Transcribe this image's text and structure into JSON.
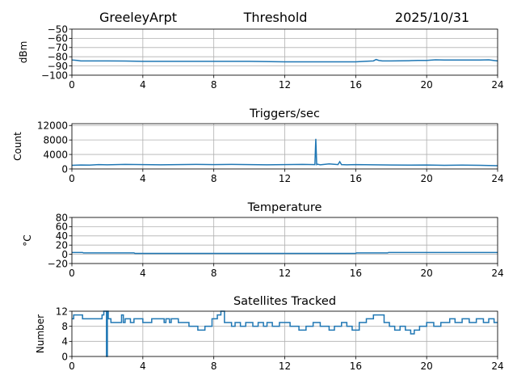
{
  "header": {
    "station": "GreeleyArpt",
    "title": "Threshold",
    "date": "2025/10/31"
  },
  "colors": {
    "line": "#1f77b4",
    "grid": "#b0b0b0",
    "axis": "#000000"
  },
  "chart_data": [
    {
      "type": "line",
      "title": "",
      "ylabel": "dBm",
      "xlim": [
        0,
        24
      ],
      "ylim": [
        -100,
        -50
      ],
      "xticks": [
        0,
        4,
        8,
        12,
        16,
        20,
        24
      ],
      "yticks": [
        -100,
        -90,
        -80,
        -70,
        -60,
        -50
      ],
      "grid": true,
      "series": [
        {
          "x": [
            0,
            0.3,
            0.5,
            1,
            2,
            3,
            4,
            6,
            8,
            10,
            12,
            14,
            16,
            16.5,
            17,
            17.15,
            17.3,
            17.5,
            18,
            19,
            19.5,
            20,
            20.5,
            21,
            22,
            23,
            23.5,
            24
          ],
          "values": [
            -83.5,
            -84,
            -84.5,
            -84.5,
            -84.5,
            -84.6,
            -85,
            -85,
            -85,
            -85,
            -85.5,
            -85.5,
            -85.5,
            -85,
            -84.5,
            -83,
            -84,
            -84.5,
            -84.5,
            -84.3,
            -84,
            -84,
            -83.3,
            -83.5,
            -83.5,
            -83.5,
            -83.3,
            -84.5
          ]
        }
      ]
    },
    {
      "type": "line",
      "title": "Triggers/sec",
      "ylabel": "Count",
      "xlim": [
        0,
        24
      ],
      "ylim": [
        0,
        12500
      ],
      "xticks": [
        0,
        4,
        8,
        12,
        16,
        20,
        24
      ],
      "yticks": [
        0,
        4000,
        8000,
        12000
      ],
      "grid": true,
      "series": [
        {
          "x": [
            0,
            0.5,
            1,
            1.5,
            2,
            3,
            4,
            5,
            6,
            7,
            8,
            9,
            10,
            11,
            12,
            13,
            13.7,
            13.75,
            13.8,
            13.85,
            14,
            14.5,
            15,
            15.1,
            15.2,
            15.5,
            16,
            17,
            18,
            19,
            20,
            21,
            22,
            23,
            24
          ],
          "values": [
            1000,
            1100,
            1050,
            1200,
            1150,
            1250,
            1200,
            1150,
            1200,
            1250,
            1200,
            1250,
            1200,
            1150,
            1200,
            1250,
            1200,
            8300,
            1200,
            1300,
            1150,
            1400,
            1200,
            2000,
            1200,
            1150,
            1200,
            1150,
            1100,
            1050,
            1100,
            1000,
            1050,
            1000,
            900
          ]
        }
      ]
    },
    {
      "type": "line",
      "title": "Temperature",
      "ylabel": "°C",
      "xlim": [
        0,
        24
      ],
      "ylim": [
        -20,
        80
      ],
      "xticks": [
        0,
        4,
        8,
        12,
        16,
        20,
        24
      ],
      "yticks": [
        -20,
        0,
        20,
        40,
        60,
        80
      ],
      "grid": true,
      "series": [
        {
          "x": [
            0,
            0.6,
            0.65,
            3.5,
            3.55,
            16,
            16.05,
            17.8,
            17.85,
            24
          ],
          "values": [
            4,
            4,
            3,
            3,
            2,
            2,
            3,
            3,
            4,
            4
          ]
        }
      ]
    },
    {
      "type": "line",
      "title": "Satellites Tracked",
      "ylabel": "Number",
      "xlim": [
        0,
        24
      ],
      "ylim": [
        0,
        12
      ],
      "xticks": [
        0,
        4,
        8,
        12,
        16,
        20,
        24
      ],
      "yticks": [
        0,
        4,
        8,
        12
      ],
      "grid": true,
      "series": [
        {
          "x": [
            0,
            0.1,
            0.1,
            0.6,
            0.6,
            1.7,
            1.7,
            1.8,
            1.8,
            1.95,
            1.95,
            2.0,
            2.0,
            2.05,
            2.05,
            2.2,
            2.2,
            2.8,
            2.8,
            2.9,
            2.9,
            3.0,
            3.0,
            3.3,
            3.3,
            3.5,
            3.5,
            4.0,
            4.0,
            4.5,
            4.5,
            5.2,
            5.2,
            5.3,
            5.3,
            5.5,
            5.5,
            5.6,
            5.6,
            6.0,
            6.0,
            6.6,
            6.6,
            7.1,
            7.1,
            7.5,
            7.5,
            7.9,
            7.9,
            8.2,
            8.2,
            8.4,
            8.4,
            8.6,
            8.6,
            9.0,
            9.0,
            9.2,
            9.2,
            9.5,
            9.5,
            9.8,
            9.8,
            10.2,
            10.2,
            10.5,
            10.5,
            10.8,
            10.8,
            11.0,
            11.0,
            11.3,
            11.3,
            11.7,
            11.7,
            12.3,
            12.3,
            12.8,
            12.8,
            13.2,
            13.2,
            13.6,
            13.6,
            14.0,
            14.0,
            14.5,
            14.5,
            14.8,
            14.8,
            15.2,
            15.2,
            15.5,
            15.5,
            15.8,
            15.8,
            16.2,
            16.2,
            16.6,
            16.6,
            17.0,
            17.0,
            17.6,
            17.6,
            17.9,
            17.9,
            18.2,
            18.2,
            18.5,
            18.5,
            18.8,
            18.8,
            19.1,
            19.1,
            19.3,
            19.3,
            19.6,
            19.6,
            20.0,
            20.0,
            20.4,
            20.4,
            20.8,
            20.8,
            21.3,
            21.3,
            21.6,
            21.6,
            22.0,
            22.0,
            22.4,
            22.4,
            22.8,
            22.8,
            23.2,
            23.2,
            23.5,
            23.5,
            23.8,
            23.8,
            24
          ],
          "values": [
            10,
            10,
            11,
            11,
            10,
            10,
            11,
            11,
            12,
            12,
            0,
            0,
            12,
            12,
            10,
            10,
            9,
            9,
            11,
            11,
            9,
            9,
            10,
            10,
            9,
            9,
            10,
            10,
            9,
            9,
            10,
            10,
            9,
            9,
            10,
            10,
            9,
            9,
            10,
            10,
            9,
            9,
            8,
            8,
            7,
            7,
            8,
            8,
            10,
            10,
            11,
            11,
            12,
            12,
            9,
            9,
            8,
            8,
            9,
            9,
            8,
            8,
            9,
            9,
            8,
            8,
            9,
            9,
            8,
            8,
            9,
            9,
            8,
            8,
            9,
            9,
            8,
            8,
            7,
            7,
            8,
            8,
            9,
            9,
            8,
            8,
            7,
            7,
            8,
            8,
            9,
            9,
            8,
            8,
            7,
            7,
            9,
            9,
            10,
            10,
            11,
            11,
            9,
            9,
            8,
            8,
            7,
            7,
            8,
            8,
            7,
            7,
            6,
            6,
            7,
            7,
            8,
            8,
            9,
            9,
            8,
            8,
            9,
            9,
            10,
            10,
            9,
            9,
            10,
            10,
            9,
            9,
            10,
            10,
            9,
            9,
            10,
            10,
            9,
            9
          ]
        }
      ]
    }
  ]
}
